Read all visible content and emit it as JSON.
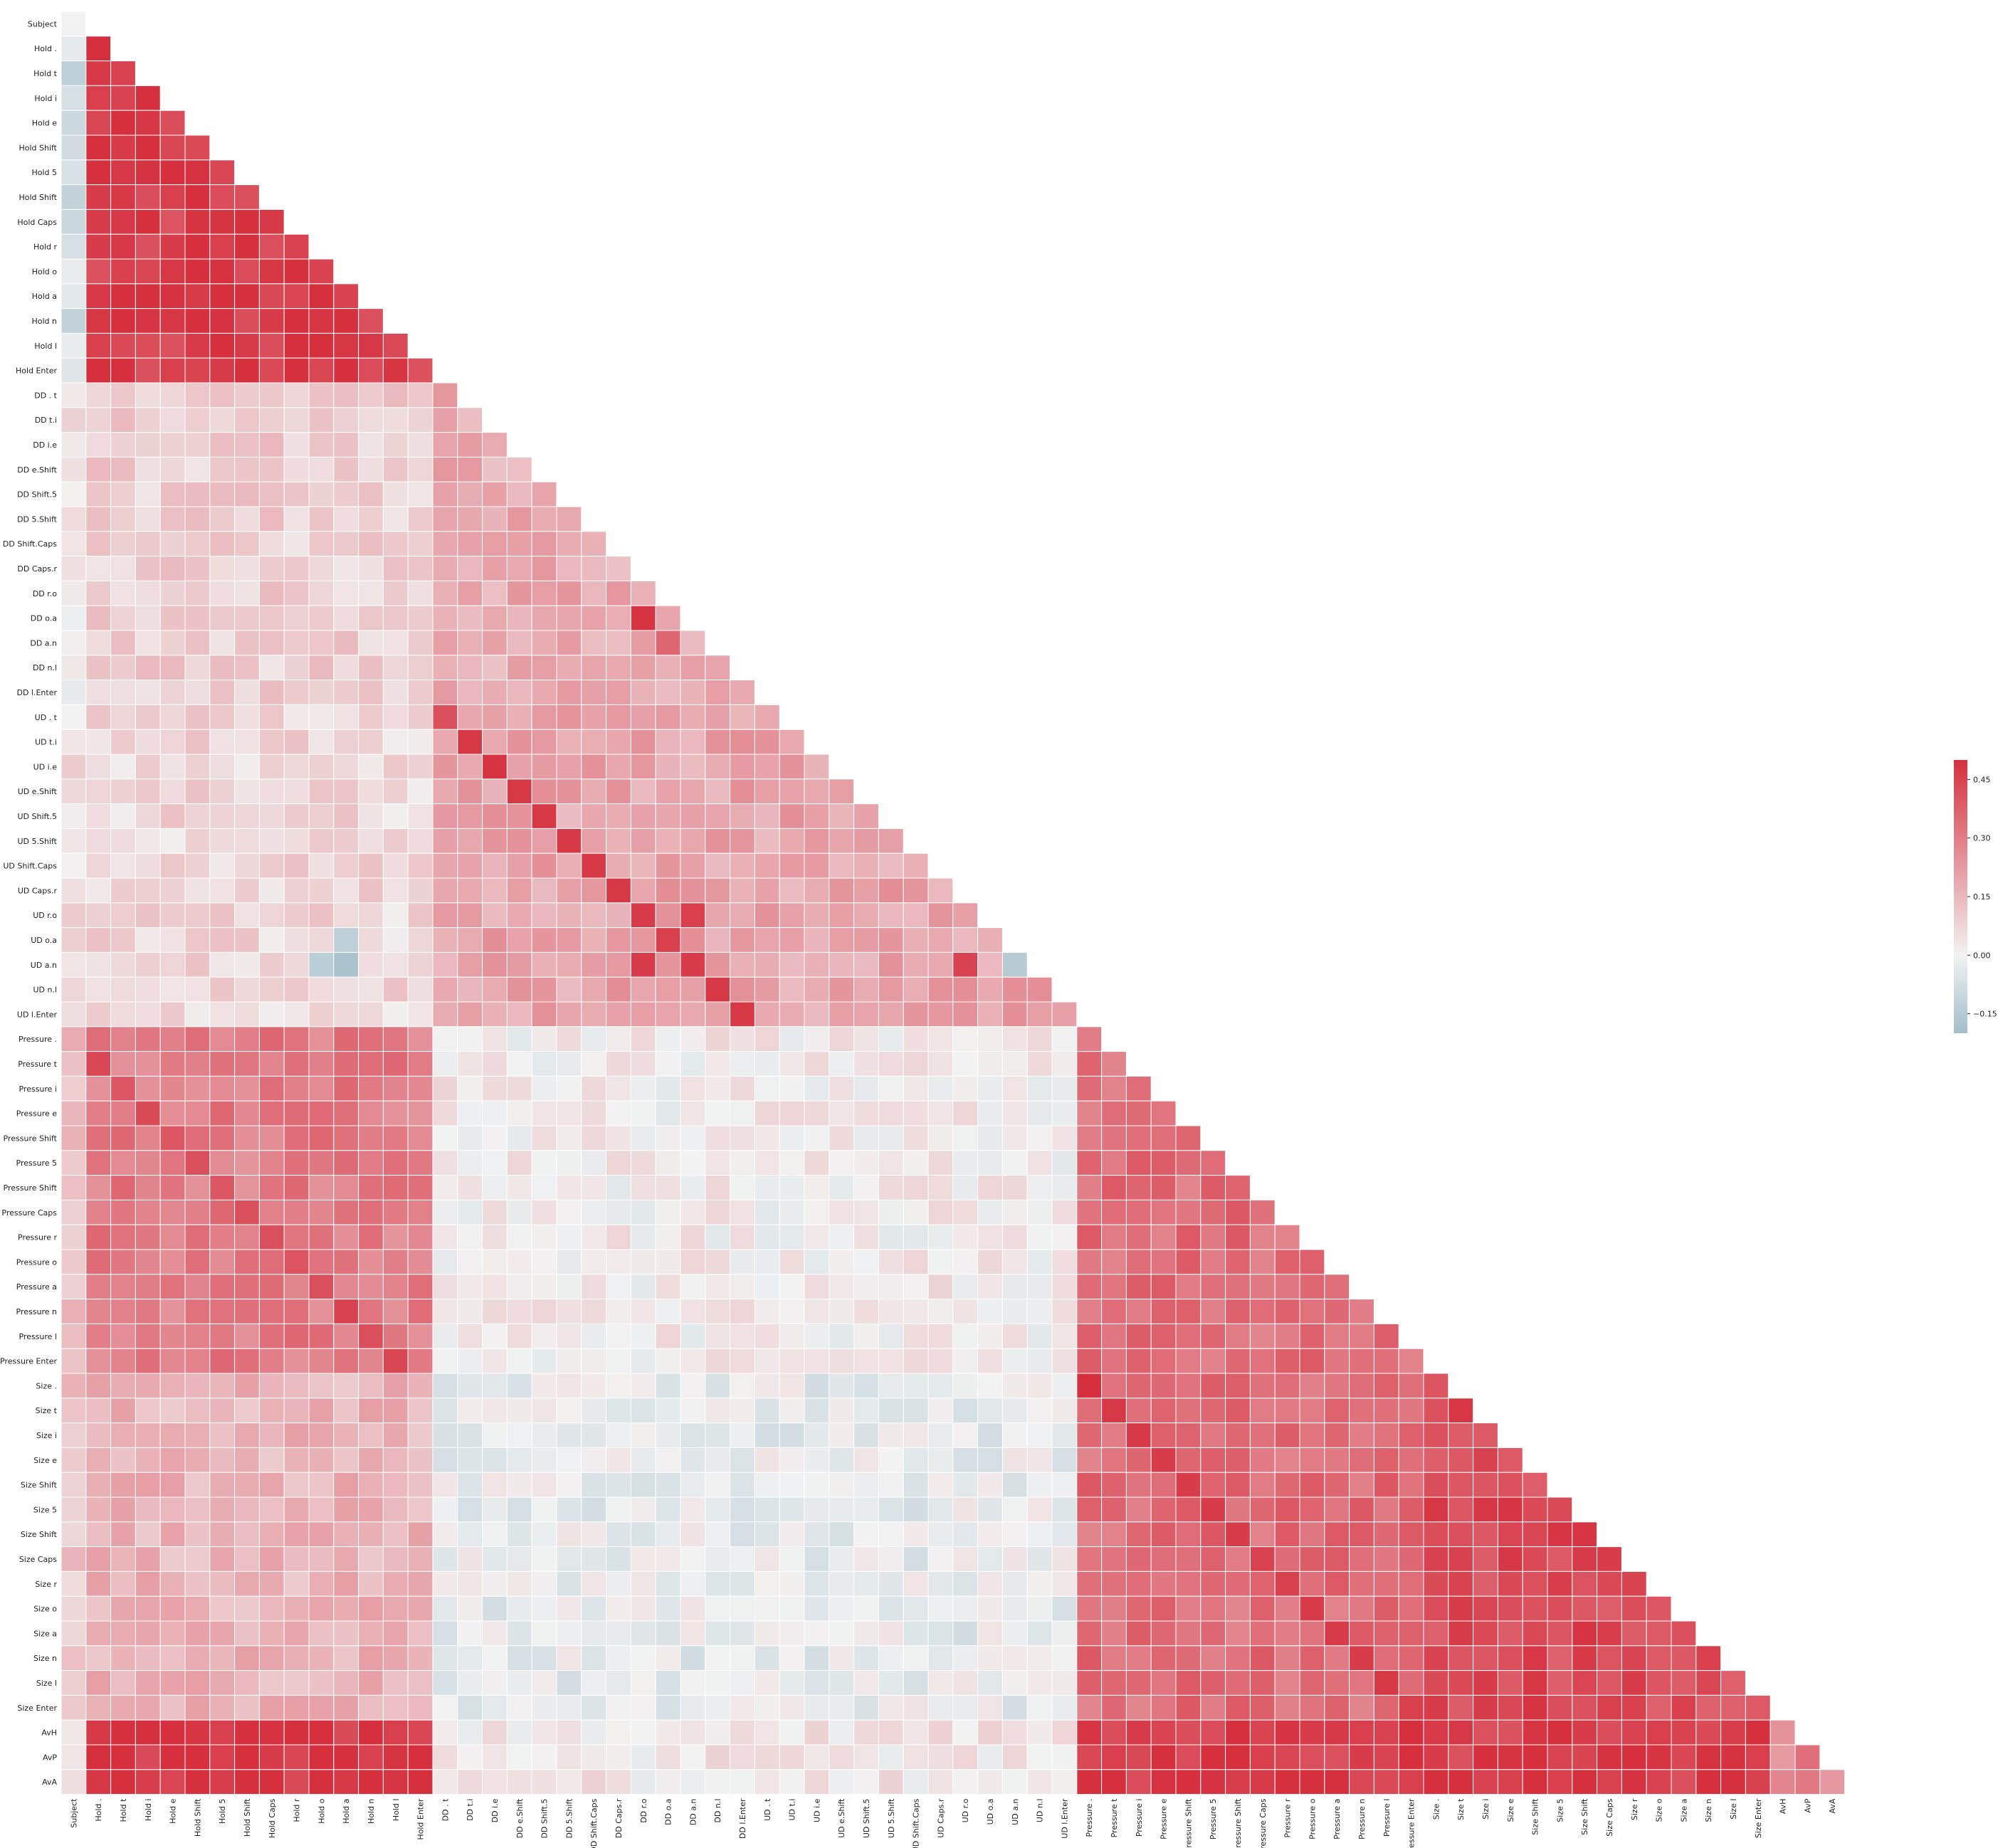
{
  "chart_data": {
    "type": "heatmap",
    "mask": "upper-triangle",
    "labels": [
      "Subject",
      "Hold .",
      "Hold t",
      "Hold i",
      "Hold e",
      "Hold Shift",
      "Hold 5",
      "Hold Shift",
      "Hold Caps",
      "Hold r",
      "Hold o",
      "Hold a",
      "Hold n",
      "Hold l",
      "Hold Enter",
      "DD . t",
      "DD t.i",
      "DD i.e",
      "DD e.Shift",
      "DD Shift.5",
      "DD 5.Shift",
      "DD Shift.Caps",
      "DD Caps.r",
      "DD r.o",
      "DD o.a",
      "DD a.n",
      "DD n.l",
      "DD l.Enter",
      "UD . t",
      "UD t.i",
      "UD i.e",
      "UD e.Shift",
      "UD Shift.5",
      "UD 5.Shift",
      "UD Shift.Caps",
      "UD Caps.r",
      "UD r.o",
      "UD o.a",
      "UD a.n",
      "UD n.l",
      "UD l.Enter",
      "Pressure .",
      "Pressure t",
      "Pressure i",
      "Pressure e",
      "Pressure Shift",
      "Pressure 5",
      "Pressure Shift",
      "Pressure Caps",
      "Pressure r",
      "Pressure o",
      "Pressure a",
      "Pressure n",
      "Pressure l",
      "Pressure Enter",
      "Size .",
      "Size t",
      "Size i",
      "Size e",
      "Size Shift",
      "Size 5",
      "Size Shift",
      "Size Caps",
      "Size r",
      "Size o",
      "Size a",
      "Size n",
      "Size l",
      "Size Enter",
      "AvH",
      "AvP",
      "AvA"
    ],
    "vmin": -0.2,
    "vmax": 0.5,
    "center": 0.0,
    "colorbar": {
      "ticks": [
        0.45,
        0.3,
        0.15,
        0.0,
        -0.15
      ],
      "tick_labels": [
        "0.45",
        "0.30",
        "0.15",
        "0.00",
        "−0.15"
      ]
    },
    "colors": {
      "negative": "#a2bec9",
      "center": "#f2f2f2",
      "positive": "#d6303f",
      "cell_border": "#ffffff"
    },
    "group_ranges": {
      "hold": [
        1,
        14
      ],
      "dd": [
        15,
        27
      ],
      "ud": [
        28,
        40
      ],
      "pressure": [
        41,
        54
      ],
      "size": [
        55,
        68
      ],
      "avg": [
        69,
        71
      ]
    },
    "block_means": {
      "subject": {
        "hold": -0.08,
        "dd": 0.03,
        "ud": 0.04,
        "pressure": 0.13,
        "size": 0.12,
        "avg": 0.05
      },
      "hold": {
        "hold": 0.47,
        "dd": 0.09,
        "ud": 0.07,
        "pressure": 0.3,
        "size": 0.16,
        "avg": 0.49
      },
      "dd": {
        "dd": 0.18,
        "ud": 0.2,
        "pressure": 0.02,
        "size": -0.02,
        "avg": 0.03
      },
      "ud": {
        "ud": 0.2,
        "pressure": 0.02,
        "size": -0.02,
        "avg": 0.03
      },
      "pressure": {
        "pressure": 0.34,
        "size": 0.34,
        "avg": 0.47
      },
      "size": {
        "size": 0.43,
        "avg": 0.47
      },
      "avg": {
        "avg": 0.28
      }
    },
    "highlights": [
      [
        24,
        23,
        0.49
      ],
      [
        25,
        24,
        0.36
      ],
      [
        28,
        15,
        0.42
      ],
      [
        29,
        16,
        0.48
      ],
      [
        30,
        17,
        0.49
      ],
      [
        31,
        18,
        0.48
      ],
      [
        32,
        19,
        0.48
      ],
      [
        33,
        20,
        0.48
      ],
      [
        34,
        21,
        0.48
      ],
      [
        35,
        22,
        0.48
      ],
      [
        36,
        23,
        0.47
      ],
      [
        37,
        24,
        0.46
      ],
      [
        38,
        25,
        0.47
      ],
      [
        39,
        26,
        0.48
      ],
      [
        40,
        27,
        0.48
      ],
      [
        38,
        23,
        0.47
      ],
      [
        38,
        36,
        0.45
      ],
      [
        36,
        25,
        0.46
      ],
      [
        42,
        1,
        0.44
      ],
      [
        43,
        2,
        0.4
      ],
      [
        44,
        3,
        0.43
      ],
      [
        45,
        4,
        0.4
      ],
      [
        46,
        5,
        0.42
      ],
      [
        47,
        6,
        0.4
      ],
      [
        48,
        7,
        0.42
      ],
      [
        49,
        8,
        0.42
      ],
      [
        50,
        9,
        0.41
      ],
      [
        51,
        10,
        0.42
      ],
      [
        52,
        11,
        0.45
      ],
      [
        53,
        12,
        0.42
      ],
      [
        54,
        13,
        0.44
      ],
      [
        55,
        41,
        0.5
      ],
      [
        56,
        42,
        0.48
      ],
      [
        57,
        43,
        0.48
      ],
      [
        58,
        44,
        0.47
      ],
      [
        59,
        45,
        0.47
      ],
      [
        60,
        46,
        0.47
      ],
      [
        61,
        47,
        0.47
      ],
      [
        62,
        48,
        0.45
      ],
      [
        63,
        49,
        0.46
      ],
      [
        64,
        50,
        0.47
      ],
      [
        65,
        51,
        0.47
      ],
      [
        66,
        52,
        0.47
      ],
      [
        67,
        53,
        0.48
      ],
      [
        68,
        54,
        0.46
      ],
      [
        38,
        11,
        -0.18
      ],
      [
        37,
        11,
        -0.13
      ],
      [
        38,
        10,
        -0.14
      ],
      [
        38,
        38,
        -0.15
      ]
    ]
  }
}
